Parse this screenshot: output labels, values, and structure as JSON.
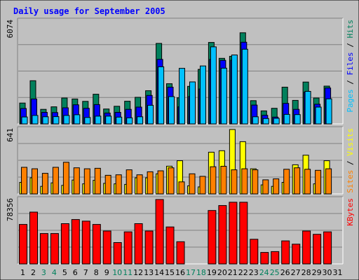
{
  "title": "Daily usage for September 2005",
  "colors": {
    "background": "#c0c0c0",
    "border_light": "#ffffff",
    "border_dark": "#808080",
    "title_text": "#0000ff",
    "hits": "#00805c",
    "files": "#0000ff",
    "pages": "#00c0ff",
    "visits": "#ffff00",
    "sites": "#ff8000",
    "kbytes": "#ff0000",
    "weekday_label": "#000000",
    "weekend_label": "#00805c"
  },
  "chart_data": [
    {
      "type": "bar",
      "title": "Pages / Files / Hits",
      "ymax_label": "6074",
      "ylim": [
        0,
        6074
      ],
      "grid": true,
      "categories": [
        "1",
        "2",
        "3",
        "4",
        "5",
        "6",
        "7",
        "8",
        "9",
        "10",
        "11",
        "12",
        "13",
        "14",
        "15",
        "16",
        "17",
        "18",
        "19",
        "20",
        "21",
        "22",
        "23",
        "24",
        "25",
        "26",
        "27",
        "28",
        "29",
        "30",
        "31"
      ],
      "series": [
        {
          "name": "Hits",
          "values": [
            1230,
            2550,
            860,
            1010,
            1530,
            1470,
            1330,
            1750,
            880,
            1040,
            1340,
            1570,
            1960,
            4750,
            2370,
            1540,
            2220,
            3220,
            4810,
            3870,
            3990,
            5380,
            1370,
            770,
            920,
            2170,
            1390,
            2470,
            1530,
            2230,
            0
          ]
        },
        {
          "name": "Files",
          "values": [
            910,
            1470,
            680,
            670,
            950,
            1130,
            920,
            1140,
            640,
            680,
            860,
            990,
            1680,
            3810,
            2170,
            1010,
            1620,
            2060,
            3810,
            3750,
            3760,
            4820,
            1110,
            510,
            400,
            1210,
            860,
            1880,
            1160,
            2120,
            0
          ]
        },
        {
          "name": "Pages",
          "values": [
            410,
            500,
            420,
            430,
            500,
            540,
            380,
            460,
            460,
            400,
            360,
            420,
            1100,
            3370,
            1610,
            3280,
            2480,
            3420,
            4550,
            3290,
            4070,
            4410,
            420,
            320,
            330,
            560,
            550,
            1920,
            990,
            1480,
            0
          ]
        }
      ]
    },
    {
      "type": "bar",
      "title": "Sites / Visits",
      "ymax_label": "641",
      "ylim": [
        0,
        641
      ],
      "grid": true,
      "categories": [
        "1",
        "2",
        "3",
        "4",
        "5",
        "6",
        "7",
        "8",
        "9",
        "10",
        "11",
        "12",
        "13",
        "14",
        "15",
        "16",
        "17",
        "18",
        "19",
        "20",
        "21",
        "22",
        "23",
        "24",
        "25",
        "26",
        "27",
        "28",
        "29",
        "30",
        "31"
      ],
      "series": [
        {
          "name": "Visits",
          "values": [
            115,
            160,
            75,
            110,
            85,
            138,
            100,
            135,
            105,
            100,
            95,
            160,
            160,
            200,
            276,
            330,
            80,
            70,
            415,
            430,
            641,
            520,
            250,
            90,
            75,
            115,
            290,
            385,
            100,
            330,
            0
          ]
        },
        {
          "name": "Sites",
          "values": [
            265,
            250,
            205,
            265,
            315,
            260,
            250,
            255,
            185,
            190,
            240,
            190,
            220,
            230,
            260,
            120,
            200,
            175,
            270,
            275,
            240,
            250,
            240,
            140,
            150,
            245,
            260,
            245,
            235,
            250,
            0
          ]
        }
      ]
    },
    {
      "type": "bar",
      "title": "KBytes",
      "ymax_label": "78356",
      "ylim": [
        0,
        78356
      ],
      "grid": true,
      "categories": [
        "1",
        "2",
        "3",
        "4",
        "5",
        "6",
        "7",
        "8",
        "9",
        "10",
        "11",
        "12",
        "13",
        "14",
        "15",
        "16",
        "17",
        "18",
        "19",
        "20",
        "21",
        "22",
        "23",
        "24",
        "25",
        "26",
        "27",
        "28",
        "29",
        "30",
        "31"
      ],
      "series": [
        {
          "name": "KBytes",
          "values": [
            48000,
            63000,
            37000,
            37000,
            49000,
            54000,
            52000,
            48000,
            40000,
            26000,
            39000,
            49000,
            40000,
            78356,
            45000,
            27000,
            0,
            0,
            65000,
            71000,
            75000,
            75000,
            30000,
            14000,
            15000,
            28000,
            24000,
            40000,
            36000,
            39000,
            0
          ]
        }
      ]
    }
  ],
  "legends": {
    "top": [
      {
        "text": "Pages",
        "color": "#00c0ff"
      },
      {
        "text": " / ",
        "color": "#000000"
      },
      {
        "text": "Files",
        "color": "#0000ff"
      },
      {
        "text": " / ",
        "color": "#000000"
      },
      {
        "text": "Hits",
        "color": "#00805c"
      }
    ],
    "middle": [
      {
        "text": "Sites",
        "color": "#ff8000"
      },
      {
        "text": " / ",
        "color": "#000000"
      },
      {
        "text": "Visits",
        "color": "#ffff00"
      }
    ],
    "bottom": [
      {
        "text": "KBytes",
        "color": "#ff0000"
      }
    ]
  },
  "x_labels": {
    "days": [
      "1",
      "2",
      "3",
      "4",
      "5",
      "6",
      "7",
      "8",
      "9",
      "10",
      "11",
      "12",
      "13",
      "14",
      "15",
      "16",
      "17",
      "18",
      "19",
      "20",
      "21",
      "22",
      "23",
      "24",
      "25",
      "26",
      "27",
      "28",
      "29",
      "30",
      "31"
    ],
    "weekend_days": [
      "3",
      "4",
      "10",
      "11",
      "17",
      "18",
      "24",
      "25"
    ]
  }
}
